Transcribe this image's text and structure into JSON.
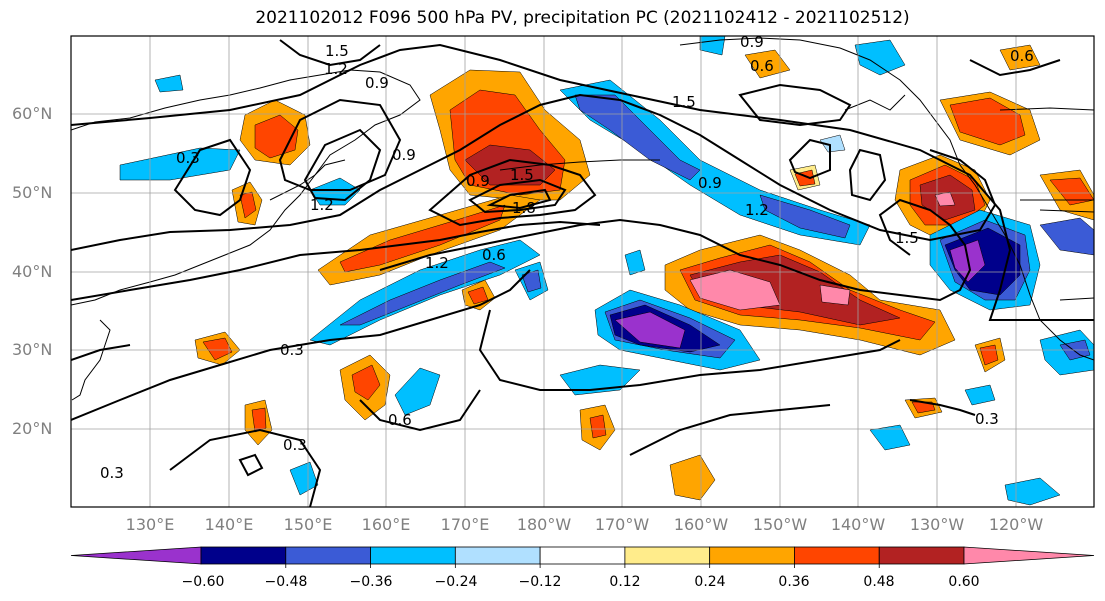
{
  "title": "2021102012 F096 500 hPa PV, precipitation PC (2021102412 - 2021102512)",
  "lat_labels": [
    "60°N",
    "50°N",
    "40°N",
    "30°N",
    "20°N"
  ],
  "lon_labels": [
    "130°E",
    "140°E",
    "150°E",
    "160°E",
    "170°E",
    "180°W",
    "170°W",
    "160°W",
    "150°W",
    "140°W",
    "130°W",
    "120°W"
  ],
  "contour_labels": [
    "1.5",
    "1.2",
    "0.9",
    "0.9",
    "0.6",
    "0.6",
    "0.3",
    "0.9",
    "1.2",
    "0.9",
    "1.5",
    "1.8",
    "1.2",
    "0.6",
    "1.5",
    "0.9",
    "1.2",
    "1.5",
    "0.3",
    "0.6",
    "0.3",
    "0.3",
    "0.3"
  ],
  "colorbar": {
    "ticks": [
      "−0.60",
      "−0.48",
      "−0.36",
      "−0.24",
      "−0.12",
      "0.12",
      "0.24",
      "0.36",
      "0.48",
      "0.60"
    ],
    "colors": [
      "#9a32cd",
      "#00008b",
      "#3b5bd6",
      "#00bfff",
      "#b0e0ff",
      "#ffffff",
      "#ffec8b",
      "#ffa500",
      "#ff4500",
      "#b22222",
      "#ff88aa"
    ]
  },
  "palette": {
    "purple": "#9a32cd",
    "navy": "#00008b",
    "blue": "#3b5bd6",
    "cyan": "#00bfff",
    "lightblue": "#b0e0ff",
    "yellow": "#ffec8b",
    "orange": "#ffa500",
    "red": "#ff4500",
    "darkred": "#b22222",
    "pink": "#ff88aa"
  }
}
